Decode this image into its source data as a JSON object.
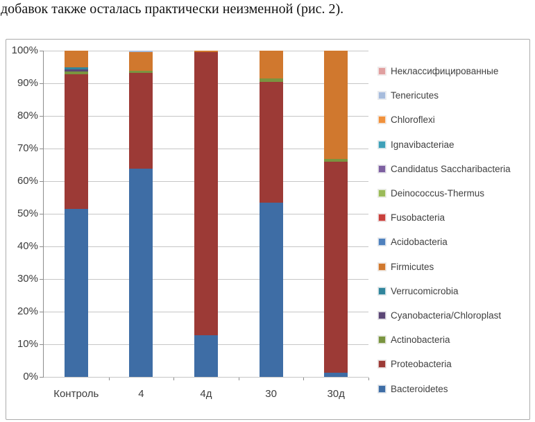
{
  "page": {
    "intro_text": "добавок также осталась практически неизменной (рис. 2)."
  },
  "chart_data": {
    "type": "bar",
    "variant": "stacked-percent-column",
    "title": "",
    "xlabel": "",
    "ylabel": "",
    "ylim": [
      0,
      100
    ],
    "ytick_labels": [
      "0%",
      "10%",
      "20%",
      "30%",
      "40%",
      "50%",
      "60%",
      "70%",
      "80%",
      "90%",
      "100%"
    ],
    "grid": true,
    "legend_position": "right",
    "categories": [
      "Контроль",
      "4",
      "4д",
      "30",
      "30д"
    ],
    "series": [
      {
        "name": "Bacteroidetes",
        "color": "#3e6da5",
        "values": [
          51.5,
          63.8,
          12.8,
          53.5,
          1.3
        ]
      },
      {
        "name": "Proteobacteria",
        "color": "#9c3a36",
        "values": [
          41.3,
          29.3,
          86.7,
          37.0,
          64.7
        ]
      },
      {
        "name": "Actinobacteria",
        "color": "#7a9440",
        "values": [
          0.8,
          0.8,
          0,
          1.0,
          0.8
        ]
      },
      {
        "name": "Cyanobacteria/Chloroplast",
        "color": "#5c4776",
        "values": [
          0.7,
          0,
          0,
          0,
          0
        ]
      },
      {
        "name": "Verrucomicrobia",
        "color": "#31859c",
        "values": [
          0.5,
          0,
          0,
          0,
          0
        ]
      },
      {
        "name": "Firmicutes",
        "color": "#d0782e",
        "values": [
          5.2,
          5.6,
          0.5,
          8.5,
          33.2
        ]
      },
      {
        "name": "Acidobacteria",
        "color": "#4f81bd",
        "values": [
          0,
          0,
          0,
          0,
          0
        ]
      },
      {
        "name": "Fusobacteria",
        "color": "#c8403c",
        "values": [
          0,
          0,
          0,
          0,
          0
        ]
      },
      {
        "name": "Deinococcus-Thermus",
        "color": "#9bbb59",
        "values": [
          0,
          0,
          0,
          0,
          0
        ]
      },
      {
        "name": "Candidatus Saccharibacteria",
        "color": "#7d60a0",
        "values": [
          0,
          0,
          0,
          0,
          0
        ]
      },
      {
        "name": "Ignavibacteriae",
        "color": "#3fa0b8",
        "values": [
          0,
          0,
          0,
          0,
          0
        ]
      },
      {
        "name": "Chloroflexi",
        "color": "#f0913c",
        "values": [
          0,
          0,
          0,
          0,
          0
        ]
      },
      {
        "name": "Tenericutes",
        "color": "#a7bcdc",
        "values": [
          0,
          0.5,
          0,
          0,
          0
        ]
      },
      {
        "name": "Неклассифицированные",
        "color": "#e0a0a0",
        "values": [
          0,
          0,
          0,
          0,
          0
        ]
      }
    ]
  }
}
